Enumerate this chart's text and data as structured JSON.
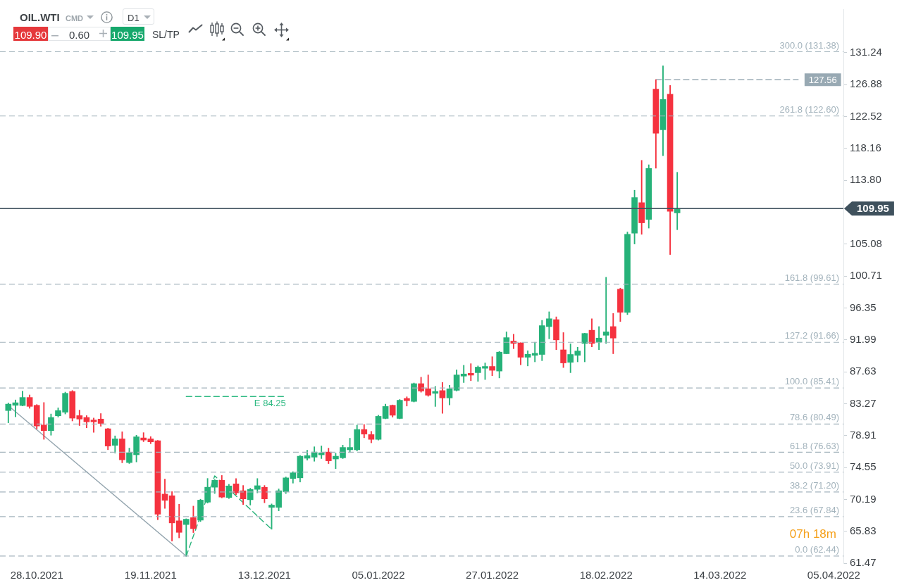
{
  "chart_data": {
    "type": "candlestick",
    "title": "OIL.WTI",
    "categories": [
      null,
      null,
      null,
      null,
      "28.10.2021",
      null,
      null,
      null,
      null,
      null,
      null,
      null,
      null,
      null,
      null,
      null,
      null,
      null,
      null,
      null,
      "19.11.2021",
      null,
      null,
      null,
      null,
      null,
      null,
      null,
      null,
      null,
      null,
      null,
      null,
      null,
      null,
      null,
      "13.12.2021",
      null,
      null,
      null,
      null,
      null,
      null,
      null,
      null,
      null,
      null,
      null,
      null,
      null,
      null,
      null,
      "05.01.2022",
      null,
      null,
      null,
      null,
      null,
      null,
      null,
      null,
      null,
      null,
      null,
      null,
      null,
      null,
      null,
      "27.01.2022",
      null,
      null,
      null,
      null,
      null,
      null,
      null,
      null,
      null,
      null,
      null,
      null,
      null,
      null,
      null,
      "18.02.2022",
      null,
      null,
      null,
      null,
      null,
      null,
      null,
      null,
      null,
      null,
      null,
      null,
      null,
      null,
      null,
      "14.03.2022",
      null,
      null,
      null,
      null,
      null,
      null,
      null,
      null,
      null,
      null,
      null,
      null,
      null,
      null,
      null,
      "05.04.2022",
      null
    ],
    "ohlc": [
      [
        82.33,
        83.37,
        80.66,
        83.21
      ],
      [
        83.05,
        83.78,
        81.48,
        83.4
      ],
      [
        83.02,
        85.0,
        82.96,
        84.12
      ],
      [
        84.12,
        84.47,
        82.64,
        82.9
      ],
      [
        83.05,
        83.15,
        79.81,
        80.22
      ],
      [
        80.35,
        83.43,
        78.4,
        79.59
      ],
      [
        79.59,
        81.86,
        78.96,
        81.39
      ],
      [
        81.61,
        82.71,
        81.45,
        82.33
      ],
      [
        82.11,
        84.85,
        81.86,
        84.69
      ],
      [
        84.94,
        85.07,
        80.91,
        81.29
      ],
      [
        81.64,
        82.39,
        80.28,
        81.17
      ],
      [
        81.39,
        81.64,
        79.97,
        80.79
      ],
      [
        81.04,
        81.32,
        79.34,
        80.79
      ],
      [
        81.17,
        81.92,
        80.19,
        80.57
      ],
      [
        79.84,
        79.9,
        76.98,
        77.48
      ],
      [
        77.58,
        78.87,
        76.51,
        78.46
      ],
      [
        78.46,
        79.43,
        75.19,
        75.6
      ],
      [
        75.22,
        77.2,
        75.09,
        76.57
      ],
      [
        76.29,
        78.96,
        75.31,
        78.74
      ],
      [
        78.59,
        79.31,
        78.08,
        78.3
      ],
      [
        78.46,
        78.77,
        77.8,
        78.05
      ],
      [
        78.21,
        78.25,
        67.41,
        68.17
      ],
      [
        70.91,
        72.95,
        68.96,
        70.06
      ],
      [
        70.69,
        71.25,
        64.49,
        66.97
      ],
      [
        67.26,
        69.52,
        64.93,
        65.68
      ],
      [
        66.75,
        67.54,
        62.44,
        67.48
      ],
      [
        67.7,
        69.27,
        65.65,
        66.19
      ],
      [
        67.35,
        70.21,
        67.16,
        70.09
      ],
      [
        69.81,
        73.05,
        69.68,
        71.85
      ],
      [
        71.85,
        72.9,
        71.0,
        72.8
      ],
      [
        72.8,
        73.46,
        70.4,
        70.5
      ],
      [
        70.45,
        72.25,
        70.3,
        72.03
      ],
      [
        72.31,
        73.04,
        70.83,
        71.08
      ],
      [
        71.37,
        72.09,
        69.48,
        70.26
      ],
      [
        70.14,
        71.71,
        69.41,
        71.56
      ],
      [
        71.56,
        73.04,
        71.08,
        72.06
      ],
      [
        71.84,
        72.09,
        69.73,
        70.26
      ],
      [
        69.1,
        69.57,
        66.11,
        69.41
      ],
      [
        69.1,
        71.62,
        68.63,
        71.37
      ],
      [
        71.24,
        73.26,
        70.99,
        73.13
      ],
      [
        73.04,
        73.98,
        72.41,
        73.82
      ],
      [
        73.13,
        76.2,
        72.56,
        76.09
      ],
      [
        75.81,
        76.91,
        75.55,
        76.18
      ],
      [
        75.96,
        77.38,
        75.4,
        76.66
      ],
      [
        76.28,
        77.5,
        75.77,
        76.56
      ],
      [
        76.66,
        77.19,
        75.08,
        75.46
      ],
      [
        75.71,
        76.5,
        74.39,
        76.09
      ],
      [
        75.87,
        77.6,
        75.77,
        77.29
      ],
      [
        76.97,
        78.55,
        76.59,
        77.29
      ],
      [
        76.97,
        80.34,
        76.81,
        79.74
      ],
      [
        79.74,
        80.43,
        78.61,
        79.11
      ],
      [
        79.05,
        79.49,
        77.92,
        78.39
      ],
      [
        78.39,
        81.69,
        78.3,
        81.54
      ],
      [
        81.25,
        83.21,
        81.2,
        82.89
      ],
      [
        83.05,
        83.1,
        81.44,
        81.69
      ],
      [
        81.25,
        83.84,
        81.2,
        83.74
      ],
      [
        83.99,
        84.21,
        82.95,
        83.68
      ],
      [
        83.58,
        86.1,
        83.5,
        86.01
      ],
      [
        86.01,
        86.89,
        84.84,
        85.0
      ],
      [
        85.31,
        87.2,
        84.28,
        84.43
      ],
      [
        84.69,
        85.63,
        82.89,
        84.94
      ],
      [
        85.06,
        86.17,
        81.95,
        84.06
      ],
      [
        84.06,
        85.79,
        83.11,
        85.31
      ],
      [
        85.1,
        87.9,
        85.0,
        87.2
      ],
      [
        87.04,
        88.52,
        86.16,
        87.33
      ],
      [
        87.42,
        88.74,
        86.41,
        87.17
      ],
      [
        87.51,
        88.43,
        86.32,
        88.27
      ],
      [
        88.11,
        88.84,
        86.57,
        88.36
      ],
      [
        88.36,
        89.69,
        87.1,
        87.83
      ],
      [
        87.73,
        90.41,
        86.79,
        90.32
      ],
      [
        90.1,
        93.09,
        90.1,
        92.3
      ],
      [
        91.83,
        92.77,
        90.79,
        91.51
      ],
      [
        91.58,
        91.6,
        88.58,
        89.62
      ],
      [
        89.62,
        90.51,
        88.43,
        90.03
      ],
      [
        89.88,
        91.67,
        88.99,
        90.16
      ],
      [
        90.0,
        94.66,
        89.15,
        93.94
      ],
      [
        93.81,
        95.83,
        92.14,
        94.88
      ],
      [
        94.76,
        95.14,
        90.66,
        91.99
      ],
      [
        90.63,
        92.99,
        88.21,
        88.84
      ],
      [
        88.93,
        91.45,
        87.51,
        90.0
      ],
      [
        89.88,
        90.98,
        88.99,
        90.47
      ],
      [
        91.51,
        92.9,
        88.99,
        92.87
      ],
      [
        93.31,
        94.88,
        91.04,
        91.51
      ],
      [
        91.67,
        93.81,
        90.66,
        92.24
      ],
      [
        92.62,
        100.55,
        91.51,
        93.09
      ],
      [
        93.81,
        95.61,
        90.1,
        92.24
      ],
      [
        98.92,
        99.07,
        94.51,
        95.77
      ],
      [
        95.77,
        106.74,
        95.45,
        106.42
      ],
      [
        106.58,
        112.45,
        105.1,
        111.45
      ],
      [
        110.75,
        116.53,
        106.42,
        107.99
      ],
      [
        108.46,
        115.93,
        107.27,
        115.43
      ],
      [
        126.27,
        127.56,
        115.46,
        120.24
      ],
      [
        120.71,
        129.44,
        117.16,
        124.85
      ],
      [
        125.57,
        126.77,
        103.66,
        109.56
      ],
      [
        109.35,
        114.9,
        107.05,
        109.95
      ],
      null,
      null,
      null,
      null,
      null,
      null,
      null,
      null,
      null,
      null,
      null,
      null,
      null,
      null,
      null,
      null,
      null,
      null,
      null,
      null,
      null,
      null,
      null
    ],
    "colors": [
      "#26b279",
      "#26b279",
      "#26b279",
      "#f5323f",
      "#f5323f",
      "#f5323f",
      "#26b279",
      "#26b279",
      "#26b279",
      "#f5323f",
      "#f5323f",
      "#f5323f",
      "#f5323f",
      "#f5323f",
      "#f5323f",
      "#26b279",
      "#f5323f",
      "#26b279",
      "#26b279",
      "#f5323f",
      "#f5323f",
      "#f5323f",
      "#f5323f",
      "#f5323f",
      "#f5323f",
      "#26b279",
      "#f5323f",
      "#26b279",
      "#26b279",
      "#26b279",
      "#f5323f",
      "#26b279",
      "#f5323f",
      "#f5323f",
      "#26b279",
      "#26b279",
      "#f5323f",
      "#26b279",
      "#26b279",
      "#26b279",
      "#26b279",
      "#26b279",
      "#26b279",
      "#26b279",
      "#26b279",
      "#f5323f",
      "#26b279",
      "#26b279",
      "#26b279",
      "#26b279",
      "#f5323f",
      "#f5323f",
      "#26b279",
      "#26b279",
      "#f5323f",
      "#26b279",
      "#f5323f",
      "#26b279",
      "#f5323f",
      "#f5323f",
      "#26b279",
      "#f5323f",
      "#26b279",
      "#26b279",
      "#26b279",
      "#f5323f",
      "#26b279",
      "#26b279",
      "#f5323f",
      "#26b279",
      "#26b279",
      "#f5323f",
      "#f5323f",
      "#26b279",
      "#26b279",
      "#26b279",
      "#26b279",
      "#f5323f",
      "#f5323f",
      "#26b279",
      "#26b279",
      "#26b279",
      "#f5323f",
      "#26b279",
      "#26b279",
      "#f5323f",
      "#f5323f",
      "#26b279",
      "#26b279",
      "#f5323f",
      "#26b279",
      "#f5323f",
      "#26b279",
      "#f5323f",
      "#26b279",
      null,
      null,
      null,
      null,
      null,
      null,
      null,
      null,
      null,
      null,
      null,
      null,
      null,
      null,
      null,
      null,
      null,
      null,
      null,
      null,
      null,
      null,
      null
    ],
    "series": [
      {
        "type": "line",
        "color": "#93a4ae",
        "line_style": "solid",
        "values": [
          83.0,
          null,
          null,
          null,
          null,
          null,
          null,
          null,
          null,
          null,
          null,
          null,
          null,
          null,
          null,
          null,
          null,
          null,
          null,
          null,
          null,
          null,
          null,
          null,
          null,
          62.44,
          null,
          null,
          null,
          null,
          null,
          null,
          null,
          null,
          null,
          null,
          null,
          null,
          null,
          null,
          null,
          null,
          null,
          null,
          null,
          null,
          null,
          null,
          null,
          null,
          null,
          null,
          null,
          null,
          null,
          null,
          null,
          null,
          null,
          null,
          null,
          null,
          null,
          null,
          null,
          null,
          null,
          null,
          null,
          null,
          null,
          null,
          null,
          null,
          null,
          null,
          null,
          null,
          null,
          null,
          null,
          null,
          null,
          null,
          null,
          null,
          null,
          null,
          null,
          null,
          null,
          null,
          null,
          null,
          null,
          null,
          null,
          null,
          null,
          null,
          null,
          null,
          null,
          null,
          null,
          null,
          null,
          null,
          null,
          null,
          null,
          null,
          null,
          null,
          null,
          null,
          null,
          null
        ]
      },
      {
        "type": "line",
        "color": "#26b279",
        "line_style": "dashed",
        "values": [
          null,
          null,
          null,
          null,
          null,
          null,
          null,
          null,
          null,
          null,
          null,
          null,
          null,
          null,
          null,
          null,
          null,
          null,
          null,
          null,
          null,
          null,
          null,
          null,
          null,
          62.44,
          null,
          null,
          null,
          73.4,
          null,
          null,
          null,
          null,
          null,
          null,
          null,
          66.1,
          null,
          null,
          null,
          null,
          null,
          null,
          null,
          null,
          null,
          null,
          null,
          null,
          null,
          null,
          null,
          null,
          null,
          null,
          null,
          null,
          null,
          null,
          null,
          null,
          null,
          null,
          null,
          null,
          null,
          null,
          null,
          null,
          null,
          null,
          null,
          null,
          null,
          null,
          null,
          null,
          null,
          null,
          null,
          null,
          null,
          null,
          null,
          null,
          null,
          null,
          null,
          null,
          null,
          null,
          null,
          null,
          null,
          null,
          null,
          null,
          null,
          null,
          null,
          null,
          null,
          null,
          null,
          null,
          null,
          null,
          null,
          null,
          null,
          null,
          null,
          null,
          null,
          null,
          null,
          null
        ]
      },
      {
        "type": "line",
        "name": "E 84.25",
        "color": "#2fba83",
        "line_style": "dashed",
        "values": [
          null,
          null,
          null,
          null,
          null,
          null,
          null,
          null,
          null,
          null,
          null,
          null,
          null,
          null,
          null,
          null,
          null,
          null,
          null,
          null,
          null,
          null,
          null,
          null,
          null,
          84.25,
          null,
          null,
          null,
          null,
          null,
          null,
          null,
          null,
          null,
          null,
          null,
          null,
          null,
          84.25,
          null,
          null,
          null,
          null,
          null,
          null,
          null,
          null,
          null,
          null,
          null,
          null,
          null,
          null,
          null,
          null,
          null,
          null,
          null,
          null,
          null,
          null,
          null,
          null,
          null,
          null,
          null,
          null,
          null,
          null,
          null,
          null,
          null,
          null,
          null,
          null,
          null,
          null,
          null,
          null,
          null,
          null,
          null,
          null,
          null,
          null,
          null,
          null,
          null,
          null,
          null,
          null,
          null,
          null,
          null,
          null,
          null,
          null,
          null,
          null,
          null,
          null,
          null,
          null,
          null,
          null,
          null,
          null,
          null,
          null,
          null,
          null,
          null,
          null,
          null,
          null,
          null,
          null
        ]
      },
      {
        "type": "line",
        "name": "127.56",
        "color": "#98a9b3",
        "line_style": "dashed",
        "values": [
          null,
          null,
          null,
          null,
          null,
          null,
          null,
          null,
          null,
          null,
          null,
          null,
          null,
          null,
          null,
          null,
          null,
          null,
          null,
          null,
          null,
          null,
          null,
          null,
          null,
          null,
          null,
          null,
          null,
          null,
          null,
          null,
          null,
          null,
          null,
          null,
          null,
          null,
          null,
          null,
          null,
          null,
          null,
          null,
          null,
          null,
          null,
          null,
          null,
          null,
          null,
          null,
          null,
          null,
          null,
          null,
          null,
          null,
          null,
          null,
          null,
          null,
          null,
          null,
          null,
          null,
          null,
          null,
          null,
          null,
          null,
          null,
          null,
          null,
          null,
          null,
          null,
          null,
          null,
          null,
          null,
          null,
          null,
          null,
          null,
          null,
          null,
          null,
          null,
          null,
          null,
          127.56,
          null,
          null,
          null,
          null,
          null,
          null,
          null,
          null,
          null,
          null,
          null,
          null,
          null,
          null,
          null,
          null,
          null,
          null,
          null,
          127.56,
          null,
          null,
          null,
          null,
          null,
          null
        ]
      }
    ],
    "ylim": [
      61.47,
      137.2
    ],
    "yticks": [
      61.47,
      65.83,
      70.19,
      74.55,
      78.91,
      83.27,
      87.63,
      91.99,
      96.35,
      100.71,
      105.08,
      {
        "value": 113.8,
        "label": "113.80"
      },
      118.16,
      122.52,
      126.88,
      131.24
    ],
    "ref_lines": [
      {
        "axis": "y",
        "value": 131.38,
        "label": "300.0 (131.38)",
        "color": "#a4b4bd",
        "line_style": "dashed"
      },
      {
        "axis": "y",
        "value": 122.6,
        "label": "261.8 (122.60)",
        "color": "#a4b4bd",
        "line_style": "dashed"
      },
      {
        "axis": "y",
        "value": 99.61,
        "label": "161.8 (99.61)",
        "color": "#a4b4bd",
        "line_style": "dashed"
      },
      {
        "axis": "y",
        "value": 91.66,
        "label": "127.2 (91.66)",
        "color": "#a4b4bd",
        "line_style": "dashed"
      },
      {
        "axis": "y",
        "value": 85.41,
        "label": "100.0 (85.41)",
        "color": "#a4b4bd",
        "line_style": "dashed"
      },
      {
        "axis": "y",
        "value": 80.49,
        "label": "78.6 (80.49)",
        "color": "#a4b4bd",
        "line_style": "dashed"
      },
      {
        "axis": "y",
        "value": 76.63,
        "label": "61.8 (76.63)",
        "color": "#a4b4bd",
        "line_style": "dashed"
      },
      {
        "axis": "y",
        "value": 73.91,
        "label": "50.0 (73.91)",
        "color": "#a4b4bd",
        "line_style": "dashed"
      },
      {
        "axis": "y",
        "value": 71.2,
        "label": "38.2 (71.20)",
        "color": "#a4b4bd",
        "line_style": "dashed"
      },
      {
        "axis": "y",
        "value": 67.84,
        "label": "23.6 (67.84)",
        "color": "#a4b4bd",
        "line_style": "dashed"
      },
      {
        "axis": "y",
        "value": 62.44,
        "label": "0.0 (62.44)",
        "color": "#a4b4bd",
        "line_style": "dashed"
      },
      {
        "axis": "y",
        "value": 109.95,
        "label": "109.95",
        "color": "#3f515d",
        "line_style": "solid"
      }
    ],
    "annotations": [
      "CMD",
      "D1",
      "109.90",
      "0.60",
      "109.95",
      "SL/TP",
      "07h 18m"
    ]
  }
}
